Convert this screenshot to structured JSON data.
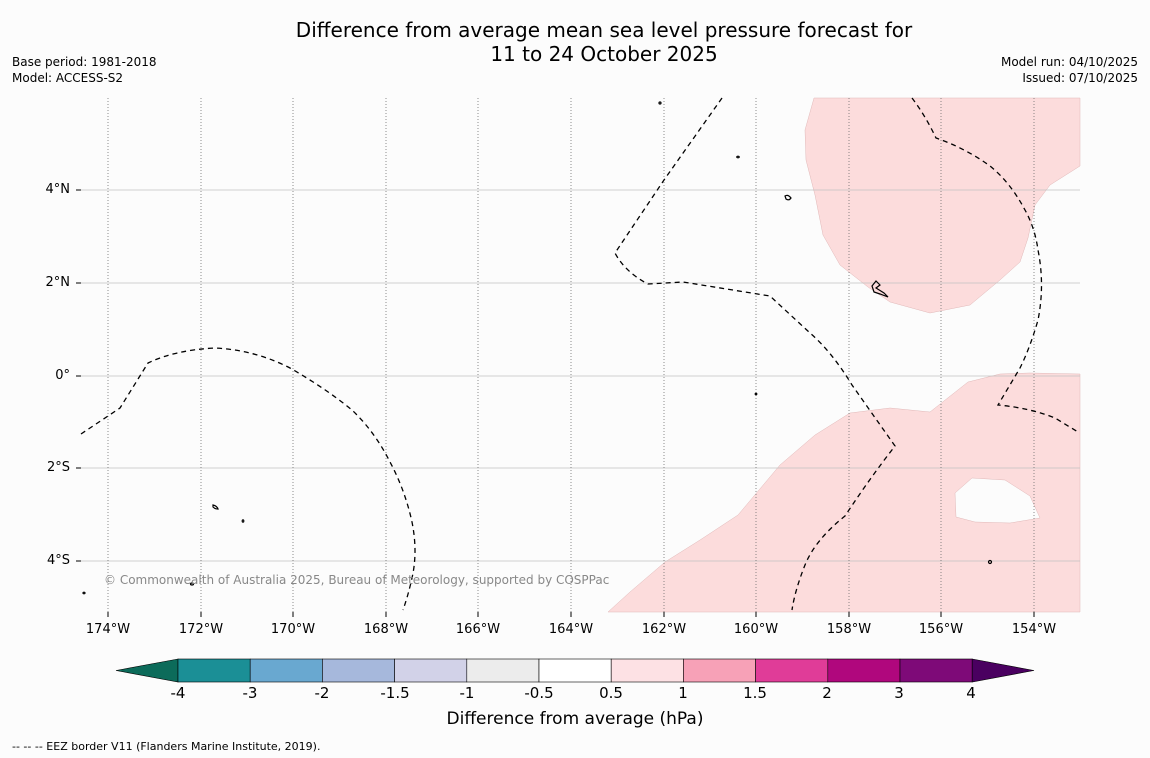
{
  "title": {
    "line1": "Difference from average mean sea level pressure forecast for",
    "line2": "11 to 24 October 2025"
  },
  "meta_left": {
    "base_period": "Base period: 1981-2018",
    "model": "Model: ACCESS-S2"
  },
  "meta_right": {
    "model_run": "Model run: 04/10/2025",
    "issued": "Issued: 07/10/2025"
  },
  "map": {
    "lat_labels": [
      "4°N",
      "2°N",
      "0°",
      "2°S",
      "4°S"
    ],
    "lon_labels": [
      "174°W",
      "172°W",
      "170°W",
      "168°W",
      "166°W",
      "164°W",
      "162°W",
      "160°W",
      "158°W",
      "156°W",
      "154°W"
    ],
    "copyright": "© Commonwealth of Australia 2025, Bureau of Meteorology, supported by COSPPac",
    "anomaly_fill_color": "#fcdcdc"
  },
  "colorbar": {
    "title": "Difference from average (hPa)",
    "tick_labels": [
      "-4",
      "-3",
      "-2",
      "-1.5",
      "-1",
      "-0.5",
      "0.5",
      "1",
      "1.5",
      "2",
      "3",
      "4"
    ],
    "colors": [
      "#0c6b5a",
      "#1b8f96",
      "#69a8d0",
      "#a6b8dc",
      "#d2d2e8",
      "#ececec",
      "#ffffff",
      "#fde1e4",
      "#f7a1b7",
      "#e03c98",
      "#b0077d",
      "#7e0a78",
      "#4a0060"
    ]
  },
  "footer": "--  --  -- EEZ border V11 (Flanders Marine Institute, 2019)."
}
